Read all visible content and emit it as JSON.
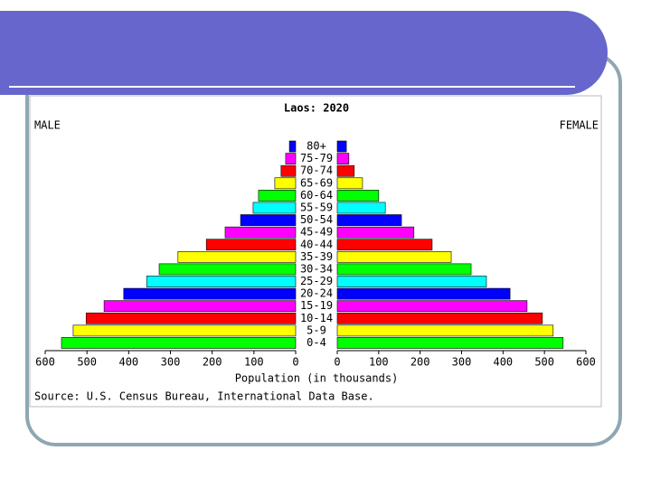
{
  "chart_data": {
    "type": "population-pyramid",
    "title": "Laos: 2020",
    "categories": [
      "80+",
      "75-79",
      "70-74",
      "65-69",
      "60-64",
      "55-59",
      "50-54",
      "45-49",
      "40-44",
      "35-39",
      "30-34",
      "25-29",
      "20-24",
      "15-19",
      "10-14",
      "5-9",
      "0-4"
    ],
    "colors": [
      "#0000ff",
      "#ff00ff",
      "#ff0000",
      "#ffff00",
      "#00ff00",
      "#00ffff",
      "#0000ff",
      "#ff00ff",
      "#ff0000",
      "#ffff00",
      "#00ff00",
      "#00ffff",
      "#0000ff",
      "#ff00ff",
      "#ff0000",
      "#ffff00",
      "#00ff00"
    ],
    "series": [
      {
        "name": "MALE",
        "values": [
          15,
          24,
          35,
          50,
          89,
          102,
          132,
          169,
          214,
          282,
          327,
          357,
          412,
          459,
          502,
          533,
          561
        ]
      },
      {
        "name": "FEMALE",
        "values": [
          22,
          28,
          41,
          61,
          100,
          116,
          155,
          185,
          229,
          275,
          323,
          360,
          417,
          458,
          495,
          521,
          545
        ]
      }
    ],
    "xlim": [
      0,
      600
    ],
    "xticks": [
      0,
      100,
      200,
      300,
      400,
      500,
      600
    ],
    "xlabel": "Population (in thousands)",
    "source": "Source: U.S. Census Bureau, International Data Base."
  }
}
